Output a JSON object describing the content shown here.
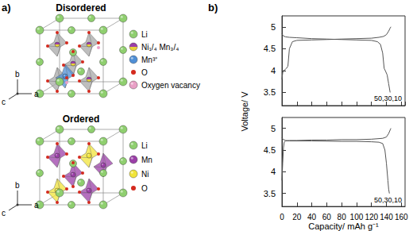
{
  "diagram": {
    "label": "a)",
    "structures": [
      {
        "title": "Disordered",
        "axes": [
          "b",
          "c",
          "a"
        ],
        "legend": [
          {
            "label": "Li",
            "color": "#8fcf6f"
          },
          {
            "label": "Ni₁/₄ Mn₃/₄",
            "colors": [
              "#9b3fa8",
              "#e8d23a"
            ]
          },
          {
            "label": "Mn³⁺",
            "color": "#4f8fd6"
          },
          {
            "label": "O",
            "color": "#d42a1e"
          },
          {
            "label": "Oxygen vacancy",
            "color": "#e9a0c6"
          }
        ]
      },
      {
        "title": "Ordered",
        "axes": [
          "b",
          "c",
          "a"
        ],
        "legend": [
          {
            "label": "Li",
            "color": "#8fcf6f"
          },
          {
            "label": "Mn",
            "color": "#9b3fa8"
          },
          {
            "label": "Ni",
            "color": "#f1e43a"
          },
          {
            "label": "O",
            "color": "#d42a1e"
          }
        ]
      }
    ]
  },
  "panel_b_label": "b)",
  "chart_data": [
    {
      "type": "line",
      "ylabel": "Voltage/ V",
      "annotation": "50,30,10",
      "xlim": [
        0,
        165
      ],
      "xticks": [
        0,
        20,
        40,
        60,
        80,
        100,
        120,
        140,
        160
      ],
      "ylim": [
        3.2,
        5.25
      ],
      "yticks": [
        3.5,
        4,
        4.5,
        5
      ],
      "grid": false,
      "tick_labels": "y",
      "series": [
        {
          "color": "#555555",
          "x": [
            0,
            1,
            2,
            4,
            6,
            8,
            10,
            14,
            20,
            40,
            60,
            80,
            100,
            120,
            130,
            136,
            140,
            143,
            145,
            146
          ],
          "values": [
            3.8,
            3.95,
            4.0,
            4.02,
            4.05,
            4.1,
            4.5,
            4.66,
            4.69,
            4.7,
            4.71,
            4.72,
            4.73,
            4.74,
            4.76,
            4.78,
            4.82,
            4.9,
            4.97,
            5.0
          ]
        },
        {
          "color": "#555555",
          "x": [
            0,
            2,
            5,
            10,
            20,
            40,
            60,
            80,
            100,
            120,
            128,
            132,
            135,
            137,
            139,
            141,
            143,
            145
          ],
          "values": [
            4.84,
            4.79,
            4.77,
            4.76,
            4.75,
            4.73,
            4.72,
            4.71,
            4.7,
            4.69,
            4.66,
            4.6,
            4.4,
            4.05,
            3.98,
            3.9,
            3.7,
            3.5
          ]
        }
      ]
    },
    {
      "type": "line",
      "xlabel": "Capacity/ mAh g⁻¹",
      "annotation": "50,30,10",
      "xlim": [
        0,
        165
      ],
      "xticks": [
        0,
        20,
        40,
        60,
        80,
        100,
        120,
        140,
        160
      ],
      "ylim": [
        3.2,
        5.25
      ],
      "yticks": [
        3.5,
        4,
        4.5,
        5
      ],
      "grid": false,
      "series": [
        {
          "color": "#555555",
          "x": [
            0,
            1,
            2,
            3,
            5,
            10,
            20,
            40,
            60,
            80,
            100,
            120,
            135,
            140,
            143,
            145,
            146
          ],
          "values": [
            3.8,
            4.2,
            4.55,
            4.68,
            4.71,
            4.72,
            4.72,
            4.73,
            4.73,
            4.74,
            4.74,
            4.75,
            4.77,
            4.8,
            4.88,
            4.96,
            5.0
          ]
        },
        {
          "color": "#555555",
          "x": [
            0,
            2,
            5,
            10,
            40,
            80,
            100,
            120,
            130,
            135,
            138,
            140,
            142,
            143,
            144
          ],
          "values": [
            4.78,
            4.74,
            4.72,
            4.71,
            4.71,
            4.7,
            4.7,
            4.69,
            4.68,
            4.65,
            4.5,
            4.2,
            3.8,
            3.6,
            3.5
          ]
        }
      ]
    }
  ]
}
